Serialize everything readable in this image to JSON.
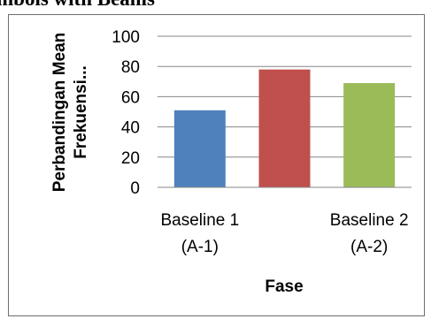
{
  "page": {
    "top_caption": "mbols with Beams"
  },
  "chart_data": {
    "type": "bar",
    "categories": [
      [
        "Baseline 1",
        "(A-1)"
      ],
      [
        "",
        ""
      ],
      [
        "Baseline 2",
        "(A-2)"
      ]
    ],
    "values": [
      51,
      78,
      69
    ],
    "colors": [
      "#4f81bd",
      "#c0504d",
      "#9bbb59"
    ],
    "xlabel": "Fase",
    "ylabel_lines": [
      "Perbandingan Mean",
      "Frekuensi..."
    ],
    "ylim": [
      0,
      100
    ],
    "yticks": [
      0,
      20,
      40,
      60,
      80,
      100
    ],
    "grid": true,
    "legend": "none"
  }
}
